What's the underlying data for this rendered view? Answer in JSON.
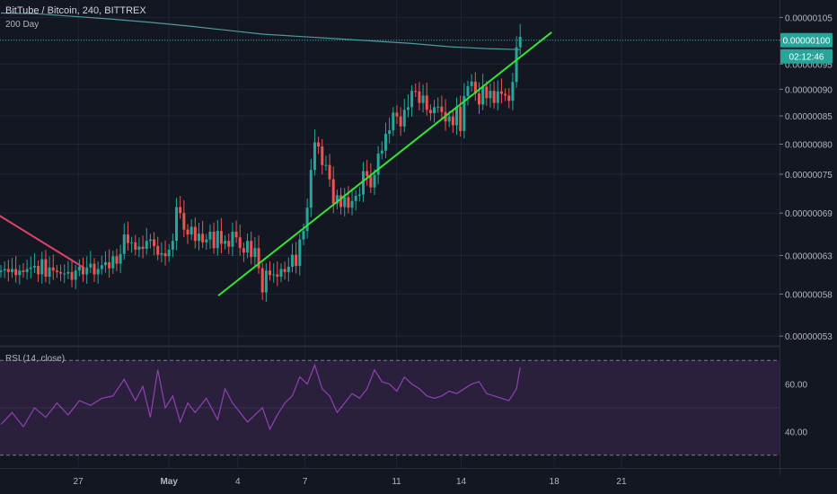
{
  "header": {
    "title": "BitTube / Bitcoin, 240, BITTREX",
    "ma_label": "200 Day"
  },
  "colors": {
    "background": "#131722",
    "grid": "#1f2535",
    "up": "#26a69a",
    "down": "#ef5350",
    "ma": "#4e9a9d",
    "trendline_up": "#33e533",
    "trendline_down": "#e0426a",
    "rsi_line": "#8e44ad",
    "rsi_band": "#2a1f3d",
    "price_badge": "#26a69a"
  },
  "price_axis": {
    "ticks": [
      "0.00000105",
      "0.00000100",
      "0.00000095",
      "0.00000090",
      "0.00000085",
      "0.00000080",
      "0.00000075",
      "0.00000069",
      "0.00000063",
      "0.00000058",
      "0.00000053"
    ],
    "current_price": "0.00000100",
    "countdown": "02:12:46"
  },
  "time_axis": {
    "ticks": [
      "27",
      "May",
      "4",
      "7",
      "11",
      "14",
      "18",
      "21"
    ]
  },
  "rsi": {
    "title": "RSI (14, close)",
    "ticks": [
      "60.00",
      "40.00"
    ],
    "upper": 70,
    "lower": 30
  },
  "chart_data": [
    {
      "type": "candlestick",
      "title": "BitTube / Bitcoin, 240, BITTREX",
      "x": [
        0,
        1,
        2,
        3,
        4,
        5,
        6,
        7,
        8,
        9,
        10,
        11,
        12,
        13,
        14,
        15,
        16,
        17,
        18,
        19,
        20,
        21,
        22,
        23,
        24,
        25,
        26,
        27,
        28,
        29,
        30,
        31,
        32,
        33,
        34,
        35,
        36,
        37,
        38,
        39,
        40,
        41,
        42,
        43,
        44,
        45,
        46,
        47,
        48,
        49,
        50,
        51,
        52,
        53,
        54,
        55,
        56,
        57,
        58,
        59,
        60,
        61,
        62,
        63,
        64,
        65,
        66,
        67,
        68,
        69,
        70,
        71,
        72,
        73,
        74,
        75,
        76,
        77,
        78,
        79,
        80,
        81,
        82,
        83,
        84,
        85,
        86,
        87,
        88,
        89,
        90,
        91,
        92,
        93,
        94,
        95,
        96,
        97,
        98,
        99,
        100,
        101,
        102,
        103,
        104,
        105,
        106,
        107,
        108,
        109,
        110,
        111,
        112,
        113,
        114,
        115,
        116,
        117,
        118,
        119,
        120,
        121,
        122,
        123,
        124,
        125,
        126,
        127,
        128,
        129,
        130,
        131,
        132,
        133,
        134,
        135,
        136,
        137,
        138,
        139
      ],
      "close": [
        6.1e-07,
        6.12e-07,
        6.08e-07,
        6.12e-07,
        6.04e-07,
        6.1e-07,
        6.08e-07,
        6.12e-07,
        6.14e-07,
        6.16e-07,
        6.05e-07,
        6.25e-07,
        6.02e-07,
        6.14e-07,
        6.1e-07,
        6.08e-07,
        6.06e-07,
        6.06e-07,
        6.08e-07,
        5.98e-07,
        6.1e-07,
        6.15e-07,
        6.05e-07,
        6.14e-07,
        6.19e-07,
        6.05e-07,
        6.12e-07,
        6.17e-07,
        6.21e-07,
        6.13e-07,
        6.29e-07,
        6.19e-07,
        6.32e-07,
        6.59e-07,
        6.47e-07,
        6.48e-07,
        6.38e-07,
        6.42e-07,
        6.39e-07,
        6.5e-07,
        6.52e-07,
        6.43e-07,
        6.31e-07,
        6.33e-07,
        6.29e-07,
        6.38e-07,
        6.5e-07,
        6.99e-07,
        6.9e-07,
        6.66e-07,
        6.59e-07,
        6.7e-07,
        6.5e-07,
        6.6e-07,
        6.48e-07,
        6.52e-07,
        6.63e-07,
        6.4e-07,
        6.64e-07,
        6.46e-07,
        6.5e-07,
        6.42e-07,
        6.63e-07,
        6.55e-07,
        6.4e-07,
        6.34e-07,
        6.5e-07,
        6.28e-07,
        6.4e-07,
        6.13e-07,
        5.82e-07,
        6.1e-07,
        6.04e-07,
        6.05e-07,
        6.02e-07,
        6.12e-07,
        6.08e-07,
        6.15e-07,
        6.31e-07,
        6.16e-07,
        6.52e-07,
        6.64e-07,
        6.98e-07,
        7.57e-07,
        8.03e-07,
        7.96e-07,
        7.65e-07,
        7.65e-07,
        7.42e-07,
        7.04e-07,
        7.17e-07,
        6.99e-07,
        7.14e-07,
        6.98e-07,
        7.08e-07,
        7.16e-07,
        7.18e-07,
        7.55e-07,
        7.47e-07,
        7.29e-07,
        7.49e-07,
        7.84e-07,
        7.89e-07,
        8.18e-07,
        8.24e-07,
        8.56e-07,
        8.49e-07,
        8.31e-07,
        8.61e-07,
        8.66e-07,
        8.97e-07,
        8.96e-07,
        8.74e-07,
        8.88e-07,
        8.61e-07,
        8.55e-07,
        8.66e-07,
        8.67e-07,
        8.57e-07,
        8.4e-07,
        8.49e-07,
        8.33e-07,
        8.67e-07,
        8.23e-07,
        8.87e-07,
        9.06e-07,
        9.15e-07,
        8.92e-07,
        8.71e-07,
        9.05e-07,
        8.83e-07,
        8.97e-07,
        8.74e-07,
        8.96e-07,
        8.91e-07,
        8.88e-07,
        8.78e-07,
        9.14e-07,
        9.85e-07,
        1.007e-06
      ],
      "open": [
        6.08e-07,
        6.1e-07,
        6.12e-07,
        6.08e-07,
        6.12e-07,
        6.04e-07,
        6.1e-07,
        6.08e-07,
        6.12e-07,
        6.14e-07,
        6.16e-07,
        6.05e-07,
        6.25e-07,
        6.02e-07,
        6.14e-07,
        6.1e-07,
        6.08e-07,
        6.06e-07,
        6.06e-07,
        6.08e-07,
        5.98e-07,
        6.1e-07,
        6.15e-07,
        6.05e-07,
        6.14e-07,
        6.19e-07,
        6.05e-07,
        6.12e-07,
        6.17e-07,
        6.21e-07,
        6.13e-07,
        6.29e-07,
        6.19e-07,
        6.32e-07,
        6.59e-07,
        6.47e-07,
        6.48e-07,
        6.38e-07,
        6.42e-07,
        6.39e-07,
        6.5e-07,
        6.52e-07,
        6.43e-07,
        6.31e-07,
        6.33e-07,
        6.29e-07,
        6.38e-07,
        6.5e-07,
        6.99e-07,
        6.9e-07,
        6.66e-07,
        6.59e-07,
        6.7e-07,
        6.5e-07,
        6.6e-07,
        6.48e-07,
        6.52e-07,
        6.63e-07,
        6.4e-07,
        6.64e-07,
        6.46e-07,
        6.5e-07,
        6.42e-07,
        6.63e-07,
        6.55e-07,
        6.4e-07,
        6.34e-07,
        6.5e-07,
        6.28e-07,
        6.4e-07,
        6.13e-07,
        5.82e-07,
        6.1e-07,
        6.04e-07,
        6.05e-07,
        6.02e-07,
        6.12e-07,
        6.08e-07,
        6.15e-07,
        6.31e-07,
        6.16e-07,
        6.52e-07,
        6.64e-07,
        6.98e-07,
        7.57e-07,
        8.03e-07,
        7.96e-07,
        7.65e-07,
        7.65e-07,
        7.42e-07,
        7.04e-07,
        7.17e-07,
        6.99e-07,
        7.14e-07,
        6.98e-07,
        7.08e-07,
        7.16e-07,
        7.18e-07,
        7.55e-07,
        7.47e-07,
        7.29e-07,
        7.49e-07,
        7.84e-07,
        7.89e-07,
        8.18e-07,
        8.24e-07,
        8.56e-07,
        8.49e-07,
        8.31e-07,
        8.61e-07,
        8.66e-07,
        8.97e-07,
        8.96e-07,
        8.74e-07,
        8.88e-07,
        8.61e-07,
        8.55e-07,
        8.66e-07,
        8.67e-07,
        8.57e-07,
        8.4e-07,
        8.49e-07,
        8.33e-07,
        8.67e-07,
        8.23e-07,
        8.87e-07,
        9.06e-07,
        9.15e-07,
        8.92e-07,
        8.71e-07,
        9.05e-07,
        8.83e-07,
        8.97e-07,
        8.74e-07,
        8.96e-07,
        8.91e-07,
        8.88e-07,
        8.78e-07,
        9.14e-07,
        9.85e-07
      ],
      "xticks": [
        {
          "label": "27",
          "at": 20.7
        },
        {
          "label": "May",
          "at": 45
        },
        {
          "label": "4",
          "at": 63.4
        },
        {
          "label": "7",
          "at": 81.4
        },
        {
          "label": "11",
          "at": 105.9
        },
        {
          "label": "14",
          "at": 123.2
        },
        {
          "label": "18",
          "at": 148.1
        },
        {
          "label": "21",
          "at": 166.1
        }
      ],
      "ylim": [
        5.2e-07,
        1.09e-06
      ],
      "yscale": "log",
      "annotations": [
        {
          "type": "trendline",
          "from": [
            58.2,
            5.78e-07
          ],
          "to": [
            147.4,
            1.017e-06
          ]
        },
        {
          "type": "trendline",
          "from": [
            -0.6,
            6.87e-07
          ],
          "to": [
            22.1,
            6.14e-07
          ]
        }
      ],
      "series": [
        {
          "name": "200 Day",
          "type": "line",
          "values": [
            [
              0,
              1.06e-06
            ],
            [
              10,
              1.058e-06
            ],
            [
              20,
              1.052e-06
            ],
            [
              30,
              1.046e-06
            ],
            [
              40,
              1.039e-06
            ],
            [
              50,
              1.031e-06
            ],
            [
              60,
              1.022e-06
            ],
            [
              70,
              1.013e-06
            ],
            [
              80,
              1.008e-06
            ],
            [
              90,
              1.003e-06
            ],
            [
              100,
              9.98e-07
            ],
            [
              110,
              9.93e-07
            ],
            [
              120,
              9.86e-07
            ],
            [
              130,
              9.82e-07
            ],
            [
              139,
              9.8e-07
            ]
          ]
        }
      ]
    },
    {
      "type": "line",
      "title": "RSI (14, close)",
      "ylim": [
        25,
        75
      ],
      "x": [
        0,
        3,
        6,
        9,
        12,
        15,
        18,
        21,
        24,
        27,
        30,
        33,
        36,
        38,
        40,
        42,
        44,
        46,
        48,
        50,
        52,
        55,
        58,
        60,
        62,
        64,
        66,
        68,
        70,
        72,
        74,
        76,
        78,
        80,
        82,
        84,
        86,
        88,
        90,
        92,
        94,
        96,
        98,
        100,
        102,
        104,
        106,
        108,
        110,
        112,
        114,
        116,
        118,
        120,
        122,
        124,
        126,
        128,
        130,
        132,
        134,
        136,
        138,
        139
      ],
      "values": [
        43,
        48,
        42,
        50,
        46,
        52,
        47,
        53,
        51,
        54,
        55,
        62,
        53,
        59,
        46,
        66,
        50,
        55,
        44,
        52,
        48,
        54,
        45,
        58,
        52,
        48,
        44,
        47,
        50,
        41,
        47,
        52,
        55,
        63,
        60,
        68,
        58,
        55,
        48,
        52,
        56,
        54,
        58,
        66,
        61,
        60,
        57,
        63,
        60,
        58,
        55,
        54,
        55,
        57,
        56,
        58,
        60,
        61,
        56,
        55,
        54,
        53,
        58,
        67
      ]
    }
  ]
}
